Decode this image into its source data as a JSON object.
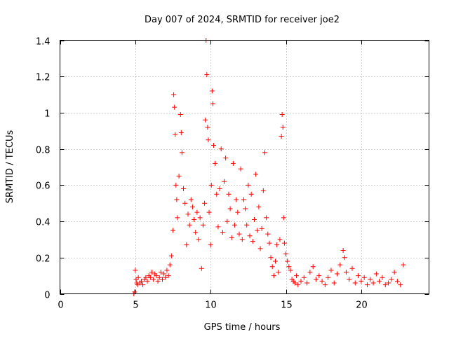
{
  "chart_data": {
    "type": "scatter",
    "title": "Day 007 of 2024, SRMTID for receiver joe2",
    "xlabel": "GPS time / hours",
    "ylabel": "SRMTID / TECUs",
    "xlim": [
      0,
      24.5
    ],
    "ylim": [
      0,
      1.4
    ],
    "grid": true,
    "marker": "+",
    "x_ticks": [
      0,
      5,
      10,
      15,
      20
    ],
    "x_tick_labels": [
      "0",
      "5",
      "10",
      "15",
      "20"
    ],
    "y_ticks": [
      0,
      0.2,
      0.4,
      0.6,
      0.8,
      1.0,
      1.2,
      1.4
    ],
    "y_tick_labels": [
      "0",
      "0.2",
      "0.4",
      "0.6",
      "0.8",
      "1",
      "1.2",
      "1.4"
    ],
    "series": [
      {
        "name": "SRMTID",
        "color": "#ff0000",
        "points": [
          [
            4.9,
            0.0
          ],
          [
            4.95,
            0.01
          ],
          [
            5.0,
            0.13
          ],
          [
            5.05,
            0.08
          ],
          [
            5.1,
            0.06
          ],
          [
            5.15,
            0.05
          ],
          [
            5.2,
            0.09
          ],
          [
            5.3,
            0.06
          ],
          [
            5.4,
            0.07
          ],
          [
            5.5,
            0.05
          ],
          [
            5.6,
            0.08
          ],
          [
            5.7,
            0.09
          ],
          [
            5.8,
            0.07
          ],
          [
            5.9,
            0.1
          ],
          [
            6.0,
            0.09
          ],
          [
            6.1,
            0.12
          ],
          [
            6.2,
            0.08
          ],
          [
            6.3,
            0.11
          ],
          [
            6.4,
            0.1
          ],
          [
            6.5,
            0.07
          ],
          [
            6.6,
            0.09
          ],
          [
            6.7,
            0.12
          ],
          [
            6.8,
            0.08
          ],
          [
            6.9,
            0.11
          ],
          [
            7.0,
            0.09
          ],
          [
            7.1,
            0.13
          ],
          [
            7.2,
            0.1
          ],
          [
            7.3,
            0.16
          ],
          [
            7.4,
            0.21
          ],
          [
            7.5,
            0.35
          ],
          [
            7.55,
            1.1
          ],
          [
            7.6,
            1.03
          ],
          [
            7.65,
            0.88
          ],
          [
            7.7,
            0.6
          ],
          [
            7.75,
            0.52
          ],
          [
            7.8,
            0.42
          ],
          [
            7.9,
            0.65
          ],
          [
            8.0,
            0.99
          ],
          [
            8.05,
            0.89
          ],
          [
            8.1,
            0.78
          ],
          [
            8.2,
            0.58
          ],
          [
            8.3,
            0.5
          ],
          [
            8.4,
            0.27
          ],
          [
            8.5,
            0.44
          ],
          [
            8.6,
            0.38
          ],
          [
            8.7,
            0.52
          ],
          [
            8.8,
            0.48
          ],
          [
            8.9,
            0.41
          ],
          [
            9.0,
            0.34
          ],
          [
            9.1,
            0.45
          ],
          [
            9.2,
            0.3
          ],
          [
            9.3,
            0.42
          ],
          [
            9.4,
            0.14
          ],
          [
            9.5,
            0.38
          ],
          [
            9.6,
            0.5
          ],
          [
            9.65,
            0.96
          ],
          [
            9.7,
            1.4
          ],
          [
            9.75,
            1.21
          ],
          [
            9.8,
            0.92
          ],
          [
            9.85,
            0.85
          ],
          [
            9.9,
            0.45
          ],
          [
            10.0,
            0.27
          ],
          [
            10.05,
            0.6
          ],
          [
            10.1,
            1.12
          ],
          [
            10.15,
            1.05
          ],
          [
            10.2,
            0.82
          ],
          [
            10.3,
            0.72
          ],
          [
            10.4,
            0.55
          ],
          [
            10.5,
            0.37
          ],
          [
            10.6,
            0.58
          ],
          [
            10.7,
            0.8
          ],
          [
            10.8,
            0.34
          ],
          [
            10.9,
            0.62
          ],
          [
            11.0,
            0.75
          ],
          [
            11.1,
            0.4
          ],
          [
            11.2,
            0.55
          ],
          [
            11.3,
            0.47
          ],
          [
            11.4,
            0.31
          ],
          [
            11.5,
            0.72
          ],
          [
            11.6,
            0.38
          ],
          [
            11.7,
            0.52
          ],
          [
            11.8,
            0.45
          ],
          [
            11.9,
            0.33
          ],
          [
            12.0,
            0.69
          ],
          [
            12.1,
            0.3
          ],
          [
            12.2,
            0.52
          ],
          [
            12.3,
            0.47
          ],
          [
            12.4,
            0.38
          ],
          [
            12.5,
            0.6
          ],
          [
            12.6,
            0.32
          ],
          [
            12.7,
            0.55
          ],
          [
            12.8,
            0.29
          ],
          [
            12.9,
            0.41
          ],
          [
            13.0,
            0.66
          ],
          [
            13.1,
            0.35
          ],
          [
            13.2,
            0.48
          ],
          [
            13.3,
            0.25
          ],
          [
            13.4,
            0.36
          ],
          [
            13.5,
            0.57
          ],
          [
            13.6,
            0.78
          ],
          [
            13.7,
            0.42
          ],
          [
            13.8,
            0.33
          ],
          [
            13.9,
            0.28
          ],
          [
            14.0,
            0.2
          ],
          [
            14.1,
            0.15
          ],
          [
            14.2,
            0.1
          ],
          [
            14.3,
            0.18
          ],
          [
            14.4,
            0.27
          ],
          [
            14.5,
            0.12
          ],
          [
            14.6,
            0.3
          ],
          [
            14.7,
            0.87
          ],
          [
            14.75,
            0.99
          ],
          [
            14.8,
            0.92
          ],
          [
            14.85,
            0.42
          ],
          [
            14.9,
            0.28
          ],
          [
            15.0,
            0.22
          ],
          [
            15.1,
            0.18
          ],
          [
            15.2,
            0.15
          ],
          [
            15.3,
            0.13
          ],
          [
            15.4,
            0.08
          ],
          [
            15.5,
            0.07
          ],
          [
            15.6,
            0.06
          ],
          [
            15.7,
            0.1
          ],
          [
            15.8,
            0.05
          ],
          [
            16.0,
            0.07
          ],
          [
            16.2,
            0.09
          ],
          [
            16.4,
            0.06
          ],
          [
            16.6,
            0.12
          ],
          [
            16.8,
            0.15
          ],
          [
            17.0,
            0.08
          ],
          [
            17.2,
            0.1
          ],
          [
            17.4,
            0.07
          ],
          [
            17.6,
            0.05
          ],
          [
            17.8,
            0.09
          ],
          [
            18.0,
            0.13
          ],
          [
            18.2,
            0.06
          ],
          [
            18.4,
            0.11
          ],
          [
            18.6,
            0.16
          ],
          [
            18.8,
            0.24
          ],
          [
            18.9,
            0.2
          ],
          [
            19.0,
            0.12
          ],
          [
            19.2,
            0.08
          ],
          [
            19.4,
            0.14
          ],
          [
            19.6,
            0.06
          ],
          [
            19.8,
            0.1
          ],
          [
            20.0,
            0.07
          ],
          [
            20.2,
            0.09
          ],
          [
            20.4,
            0.05
          ],
          [
            20.6,
            0.08
          ],
          [
            20.8,
            0.06
          ],
          [
            21.0,
            0.11
          ],
          [
            21.2,
            0.07
          ],
          [
            21.4,
            0.09
          ],
          [
            21.6,
            0.05
          ],
          [
            21.8,
            0.06
          ],
          [
            22.0,
            0.08
          ],
          [
            22.2,
            0.12
          ],
          [
            22.4,
            0.07
          ],
          [
            22.6,
            0.05
          ],
          [
            22.8,
            0.16
          ]
        ]
      }
    ]
  }
}
